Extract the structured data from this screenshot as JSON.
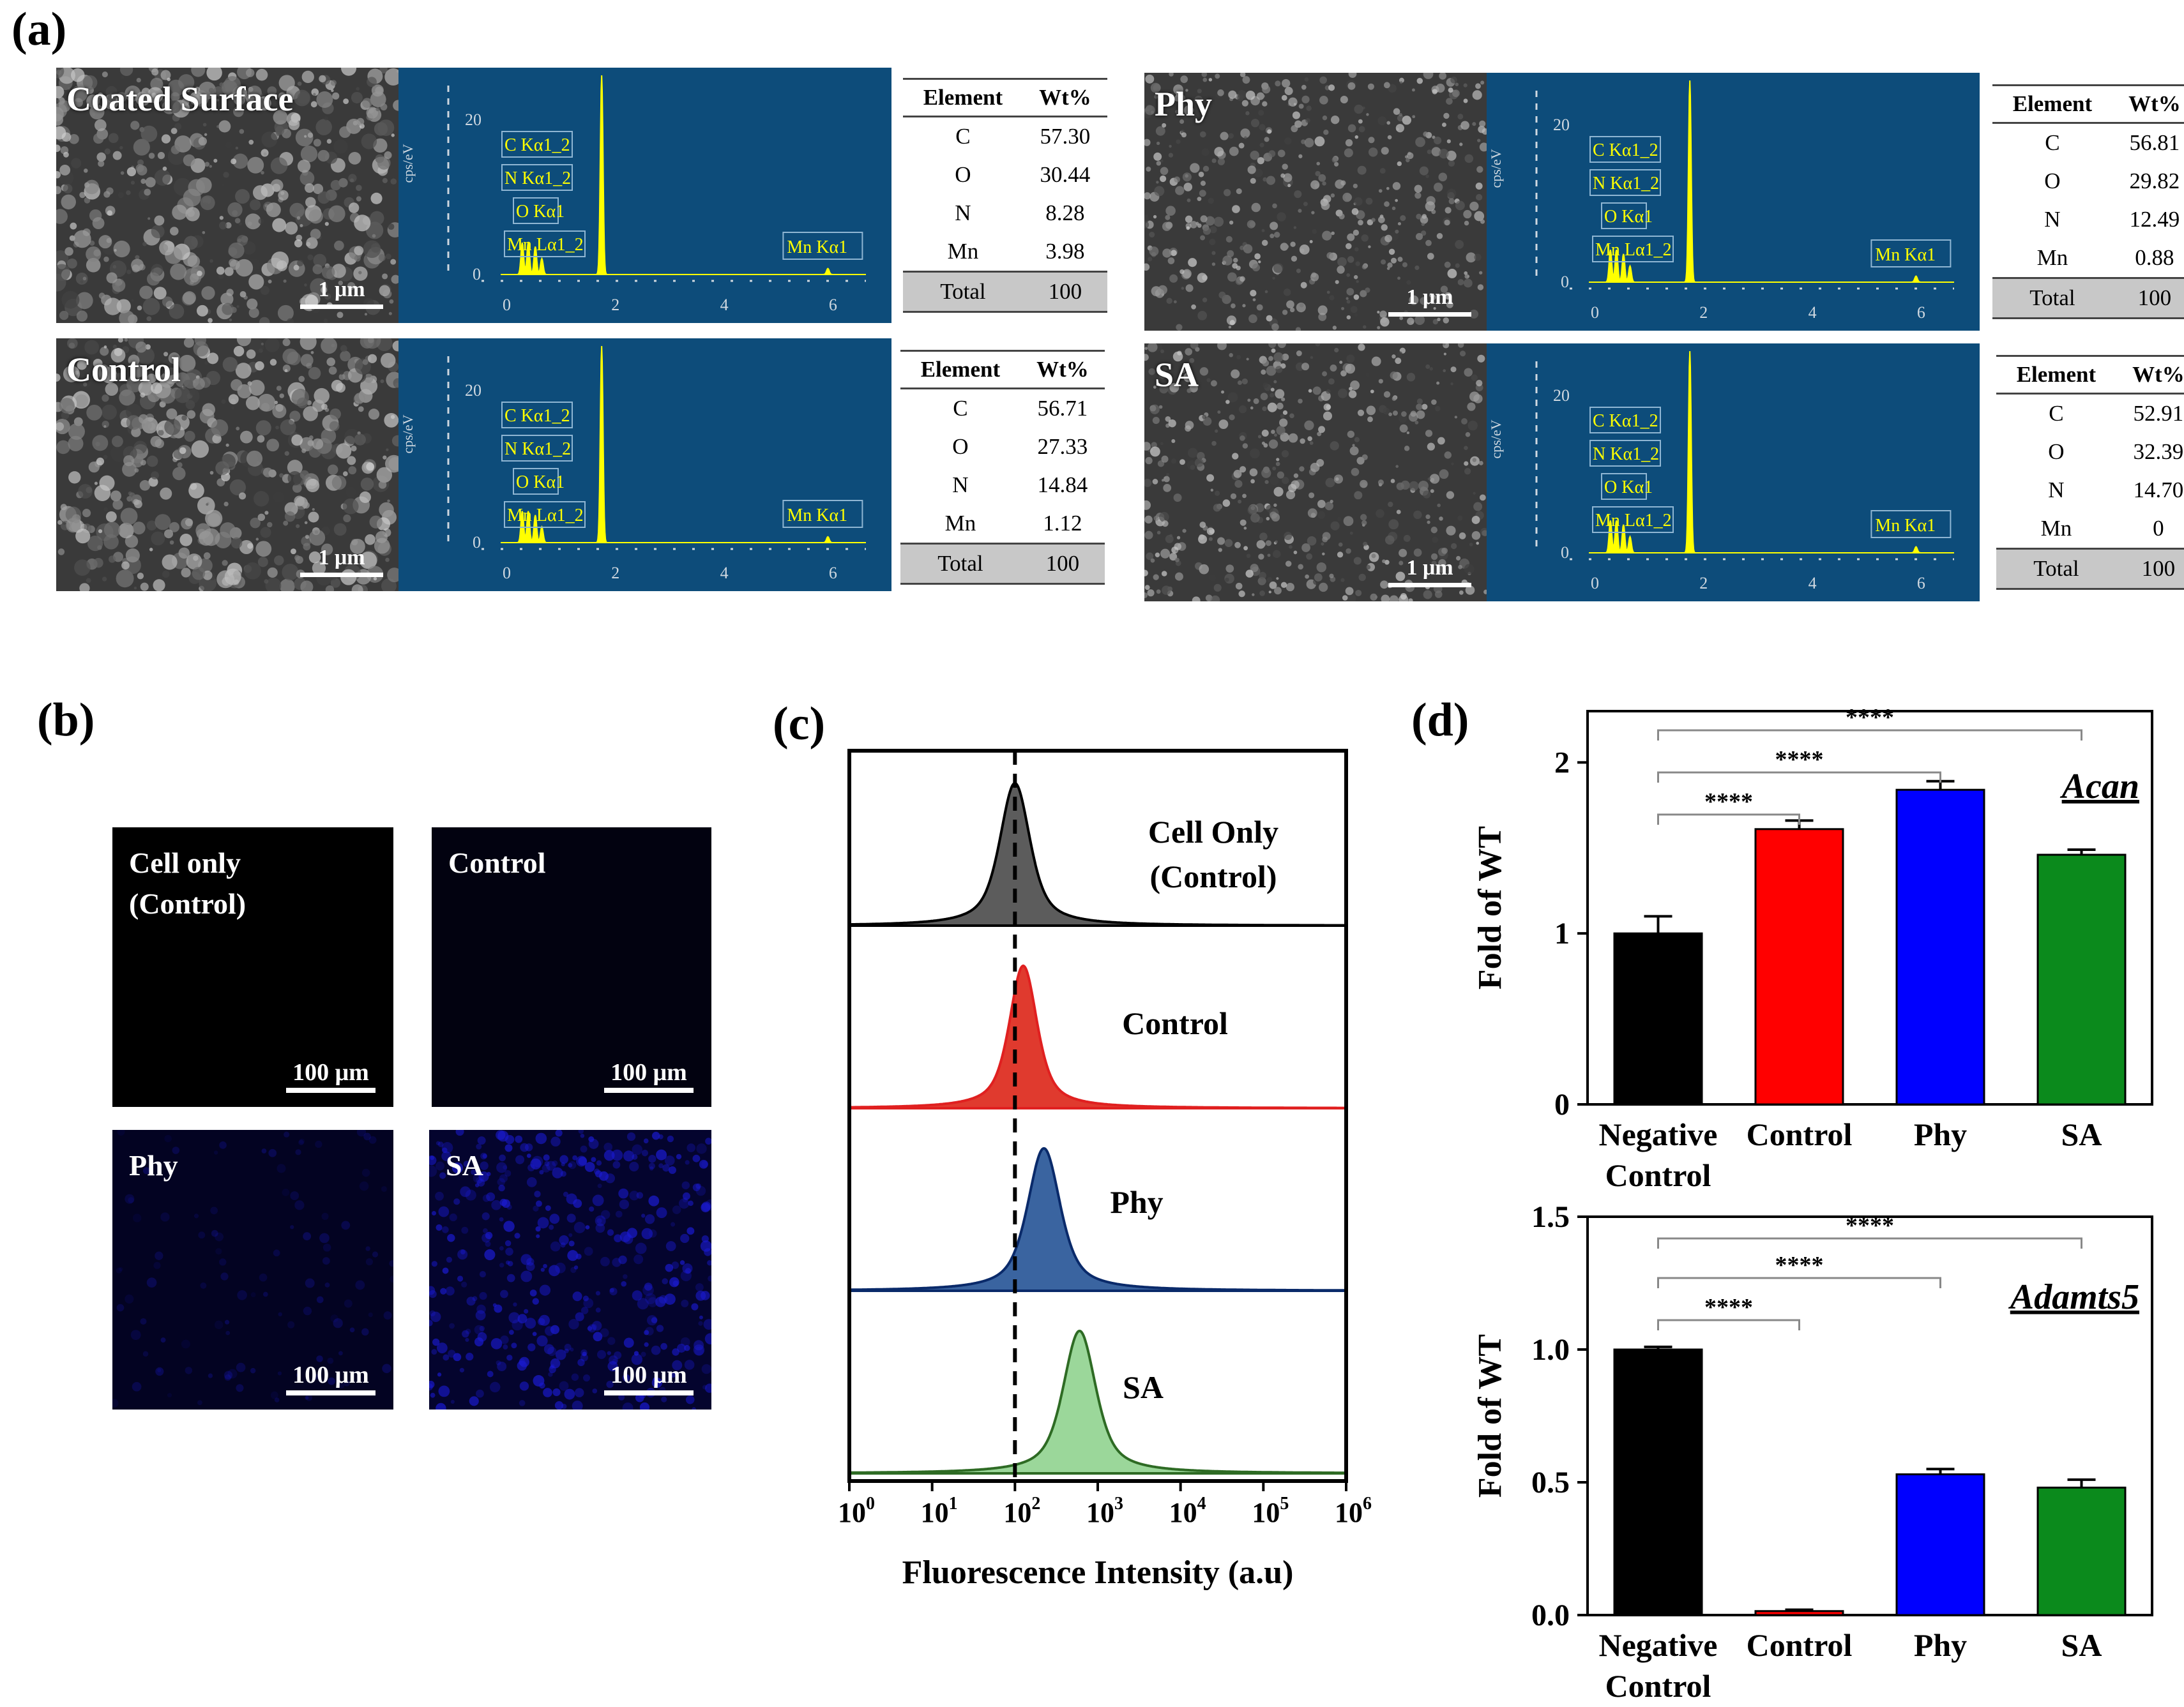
{
  "panel_labels": {
    "a": "(a)",
    "b": "(b)",
    "c": "(c)",
    "d": "(d)"
  },
  "panel_a": {
    "scale": "1 μm",
    "eds_axis": {
      "ylabel": "cps/eV",
      "yticks": [
        "0",
        "20"
      ],
      "xticks": [
        "0",
        "2",
        "4",
        "6"
      ]
    },
    "eds_peak_labels": [
      "C Kα1_2",
      "N Kα1_2",
      "O Kα1",
      "Mn Lα1_2",
      "Mn Kα1"
    ],
    "eds_peak_labels_left": [
      "C Kα1_2",
      "N Kα1_2",
      "O Kα1",
      "Mn Lα1_2",
      "Mn Kα1"
    ],
    "table_header": {
      "element": "Element",
      "wt": "Wt%"
    },
    "samples": [
      {
        "name": "Coated Surface",
        "rows": [
          [
            "C",
            "57.30"
          ],
          [
            "O",
            "30.44"
          ],
          [
            "N",
            "8.28"
          ],
          [
            "Mn",
            "3.98"
          ]
        ],
        "total": [
          "Total",
          "100"
        ]
      },
      {
        "name": "Control",
        "rows": [
          [
            "C",
            "56.71"
          ],
          [
            "O",
            "27.33"
          ],
          [
            "N",
            "14.84"
          ],
          [
            "Mn",
            "1.12"
          ]
        ],
        "total": [
          "Total",
          "100"
        ]
      },
      {
        "name": "Phy",
        "rows": [
          [
            "C",
            "56.81"
          ],
          [
            "O",
            "29.82"
          ],
          [
            "N",
            "12.49"
          ],
          [
            "Mn",
            "0.88"
          ]
        ],
        "total": [
          "Total",
          "100"
        ]
      },
      {
        "name": "SA",
        "rows": [
          [
            "C",
            "52.91"
          ],
          [
            "O",
            "32.39"
          ],
          [
            "N",
            "14.70"
          ],
          [
            "Mn",
            "0"
          ]
        ],
        "total": [
          "Total",
          "100"
        ]
      }
    ]
  },
  "panel_b": {
    "scale": "100 μm",
    "images": [
      {
        "label_line1": "Cell only",
        "label_line2": "(Control)"
      },
      {
        "label_line1": "Control",
        "label_line2": ""
      },
      {
        "label_line1": "Phy",
        "label_line2": ""
      },
      {
        "label_line1": "SA",
        "label_line2": ""
      }
    ]
  },
  "colors": {
    "black": "#000000",
    "red": "#ff0000",
    "blue": "#0000ff",
    "green": "#0b8a1c",
    "gray_fill": "#5c5c5c",
    "red_fill": "#e03a2e",
    "blue_fill": "#3a64a0",
    "green_fill": "#9bd79a",
    "eds_bg": "#0d4c7a",
    "eds_peak": "#ffff00"
  },
  "chart_data": [
    {
      "type": "area",
      "panel": "c",
      "title": "",
      "xlabel": "Fluorescence Intensity (a.u)",
      "xscale": "log",
      "xlim": [
        1,
        1000000
      ],
      "xtick_labels": [
        "10",
        "10",
        "10",
        "10",
        "10",
        "10",
        "10"
      ],
      "xtick_exponents": [
        "0",
        "1",
        "2",
        "3",
        "4",
        "5",
        "6"
      ],
      "reference_line_x": 100,
      "series": [
        {
          "name": "Cell Only",
          "name_line2": "(Control)",
          "peak_log10": 2.0,
          "width_log10": 0.24
        },
        {
          "name": "Control",
          "name_line2": "",
          "peak_log10": 2.1,
          "width_log10": 0.22
        },
        {
          "name": "Phy",
          "name_line2": "",
          "peak_log10": 2.35,
          "width_log10": 0.26
        },
        {
          "name": "SA",
          "name_line2": "",
          "peak_log10": 2.78,
          "width_log10": 0.26
        }
      ]
    },
    {
      "type": "bar",
      "panel": "d-top",
      "gene": "Acan",
      "ylabel": "Fold of WT",
      "ylim": [
        0,
        2.3
      ],
      "yticks": [
        "0",
        "1",
        "2"
      ],
      "categories": [
        "Negative Control",
        "Control",
        "Phy",
        "SA"
      ],
      "category_lines": [
        [
          "Negative",
          "Control"
        ],
        [
          "Control"
        ],
        [
          "Phy"
        ],
        [
          "SA"
        ]
      ],
      "values": [
        1.0,
        1.61,
        1.84,
        1.46
      ],
      "errors": [
        0.1,
        0.05,
        0.05,
        0.03
      ],
      "significance": [
        "****",
        "****",
        "****"
      ]
    },
    {
      "type": "bar",
      "panel": "d-bottom",
      "gene": "Adamts5",
      "ylabel": "Fold of WT",
      "ylim": [
        0,
        1.5
      ],
      "yticks": [
        "0.0",
        "0.5",
        "1.0",
        "1.5"
      ],
      "categories": [
        "Negative Control",
        "Control",
        "Phy",
        "SA"
      ],
      "category_lines": [
        [
          "Negative",
          "Control"
        ],
        [
          "Control"
        ],
        [
          "Phy"
        ],
        [
          "SA"
        ]
      ],
      "values": [
        1.0,
        0.015,
        0.53,
        0.48
      ],
      "errors": [
        0.01,
        0.005,
        0.02,
        0.03
      ],
      "significance": [
        "****",
        "****",
        "****"
      ]
    }
  ]
}
